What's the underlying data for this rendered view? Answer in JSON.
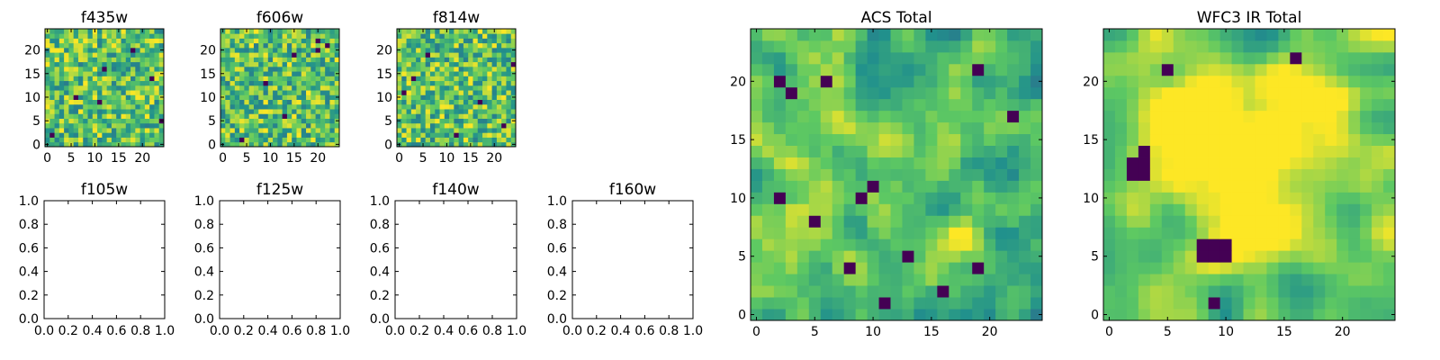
{
  "chart_data": {
    "type": "heatmap",
    "colormap": [
      "#440154",
      "#3b528b",
      "#21918c",
      "#5ec962",
      "#fde725"
    ],
    "panels": [
      {
        "title": "f435w",
        "kind": "image",
        "size": 25,
        "xticks": [
          0,
          5,
          10,
          15,
          20
        ],
        "yticks": [
          0,
          5,
          10,
          15,
          20
        ],
        "texture": "fine",
        "seed": 11,
        "dark_pixels": [
          [
            1,
            2
          ],
          [
            6,
            10
          ],
          [
            11,
            9
          ],
          [
            12,
            16
          ],
          [
            18,
            20
          ],
          [
            22,
            14
          ],
          [
            24,
            5
          ]
        ],
        "bright_blobs": []
      },
      {
        "title": "f606w",
        "kind": "image",
        "size": 25,
        "xticks": [
          0,
          5,
          10,
          15,
          20
        ],
        "yticks": [
          0,
          5,
          10,
          15,
          20
        ],
        "texture": "fine",
        "seed": 23,
        "dark_pixels": [
          [
            4,
            1
          ],
          [
            9,
            13
          ],
          [
            13,
            6
          ],
          [
            15,
            19
          ],
          [
            20,
            20
          ],
          [
            20,
            22
          ],
          [
            22,
            21
          ]
        ],
        "bright_blobs": []
      },
      {
        "title": "f814w",
        "kind": "image",
        "size": 25,
        "xticks": [
          0,
          5,
          10,
          15,
          20
        ],
        "yticks": [
          0,
          5,
          10,
          15,
          20
        ],
        "texture": "fine",
        "seed": 37,
        "dark_pixels": [
          [
            1,
            11
          ],
          [
            3,
            14
          ],
          [
            6,
            19
          ],
          [
            12,
            2
          ],
          [
            17,
            9
          ],
          [
            22,
            4
          ],
          [
            24,
            17
          ]
        ],
        "bright_blobs": []
      },
      {
        "title": "f105w",
        "kind": "empty",
        "xticks": [
          "0.0",
          "0.2",
          "0.4",
          "0.6",
          "0.8",
          "1.0"
        ],
        "yticks": [
          "0.0",
          "0.2",
          "0.4",
          "0.6",
          "0.8",
          "1.0"
        ]
      },
      {
        "title": "f125w",
        "kind": "empty",
        "xticks": [
          "0.0",
          "0.2",
          "0.4",
          "0.6",
          "0.8",
          "1.0"
        ],
        "yticks": [
          "0.0",
          "0.2",
          "0.4",
          "0.6",
          "0.8",
          "1.0"
        ]
      },
      {
        "title": "f140w",
        "kind": "empty",
        "xticks": [
          "0.0",
          "0.2",
          "0.4",
          "0.6",
          "0.8",
          "1.0"
        ],
        "yticks": [
          "0.0",
          "0.2",
          "0.4",
          "0.6",
          "0.8",
          "1.0"
        ]
      },
      {
        "title": "f160w",
        "kind": "empty",
        "xticks": [
          "0.0",
          "0.2",
          "0.4",
          "0.6",
          "0.8",
          "1.0"
        ],
        "yticks": [
          "0.0",
          "0.2",
          "0.4",
          "0.6",
          "0.8",
          "1.0"
        ]
      },
      {
        "title": "ACS Total",
        "kind": "image",
        "size": 25,
        "xticks": [
          0,
          5,
          10,
          15,
          20
        ],
        "yticks": [
          0,
          5,
          10,
          15,
          20
        ],
        "texture": "medium",
        "seed": 53,
        "dark_pixels": [
          [
            2,
            20
          ],
          [
            6,
            20
          ],
          [
            19,
            21
          ],
          [
            10,
            11
          ],
          [
            2,
            10
          ],
          [
            9,
            10
          ],
          [
            5,
            8
          ],
          [
            13,
            5
          ],
          [
            11,
            1
          ],
          [
            19,
            4
          ],
          [
            16,
            2
          ],
          [
            22,
            17
          ],
          [
            3,
            19
          ],
          [
            8,
            4
          ]
        ],
        "bright_blobs": []
      },
      {
        "title": "WFC3 IR Total",
        "kind": "image",
        "size": 25,
        "xticks": [
          0,
          5,
          10,
          15,
          20
        ],
        "yticks": [
          0,
          5,
          10,
          15,
          20
        ],
        "texture": "smooth",
        "seed": 71,
        "dark_pixels": [
          [
            2,
            12
          ],
          [
            3,
            12
          ],
          [
            2,
            13
          ],
          [
            3,
            13
          ],
          [
            3,
            14
          ],
          [
            8,
            5
          ],
          [
            9,
            5
          ],
          [
            10,
            5
          ],
          [
            8,
            6
          ],
          [
            9,
            6
          ],
          [
            10,
            6
          ],
          [
            9,
            1
          ],
          [
            5,
            21
          ],
          [
            16,
            22
          ]
        ],
        "bright_blobs": [
          [
            13,
            13,
            5.5,
            0.45
          ],
          [
            8,
            17,
            2.5,
            0.35
          ]
        ]
      }
    ]
  }
}
